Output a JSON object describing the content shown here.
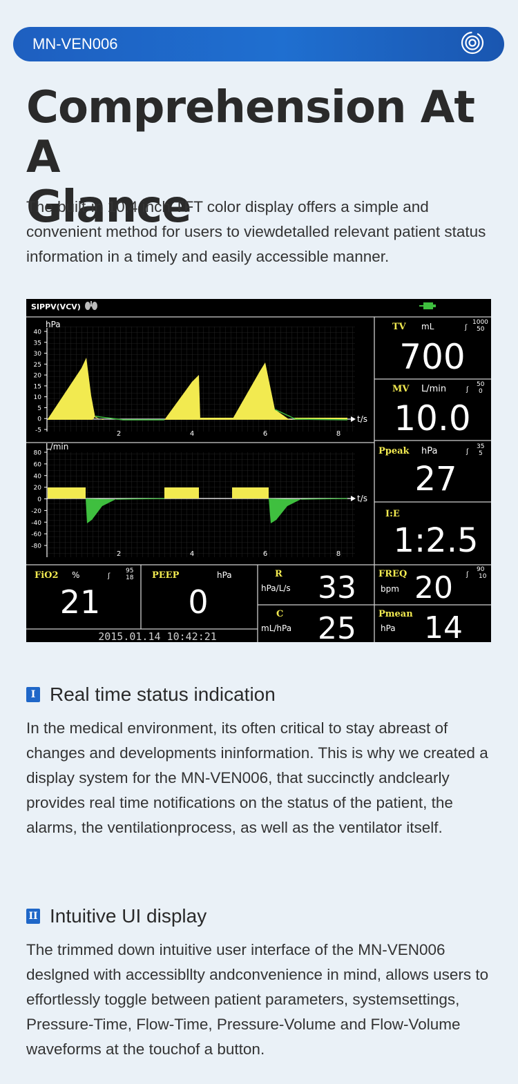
{
  "header": {
    "title": "MN-VEN006",
    "icon": "target-icon"
  },
  "hero": {
    "heading_line1": "Comprehension At A",
    "heading_line2": "Glance",
    "intro": "The built-in 10,4 inch TFT color display offers a simple and convenient method for users to viewdetalled relevant patient status information in a timely and easily accessible manner."
  },
  "monitor": {
    "mode": "SIPPV(VCV)",
    "pressure_chart": {
      "unit": "hPa",
      "yticks": [
        "40",
        "35",
        "30",
        "25",
        "20",
        "15",
        "10",
        "5",
        "0",
        "-5"
      ],
      "xticks": [
        "2",
        "4",
        "6",
        "8"
      ],
      "xlabel": "t/s"
    },
    "flow_chart": {
      "unit": "L/min",
      "yticks": [
        "80",
        "60",
        "40",
        "20",
        "0",
        "-20",
        "-40",
        "-60",
        "-80"
      ],
      "xticks": [
        "2",
        "4",
        "6",
        "8"
      ],
      "xlabel": "t/s"
    },
    "params": {
      "tv": {
        "label": "TV",
        "unit": "mL",
        "hi": "1000",
        "lo": "50",
        "value": "700"
      },
      "mv": {
        "label": "MV",
        "unit": "L/min",
        "hi": "50",
        "lo": "0",
        "value": "10.0"
      },
      "ppeak": {
        "label": "Ppeak",
        "unit": "hPa",
        "hi": "35",
        "lo": "5",
        "value": "27"
      },
      "ie": {
        "label": "I:E",
        "value": "1:2.5"
      },
      "fio2": {
        "label": "FiO2",
        "unit": "%",
        "hi": "95",
        "lo": "18",
        "value": "21"
      },
      "peep": {
        "label": "PEEP",
        "unit": "hPa",
        "value": "0"
      },
      "r": {
        "label": "R",
        "unit": "hPa/L/s",
        "value": "33"
      },
      "c": {
        "label": "C",
        "unit": "mL/hPa",
        "value": "25"
      },
      "freq": {
        "label": "FREQ",
        "unit": "bpm",
        "hi": "90",
        "lo": "10",
        "value": "20"
      },
      "pmean": {
        "label": "Pmean",
        "unit": "hPa",
        "value": "14"
      }
    },
    "datetime": "2015.01.14  10:42:21",
    "colors": {
      "pressure": "#f2ea50",
      "flow_neg": "#3fbf3f",
      "text": "#ffffff",
      "label": "#f2ea50"
    }
  },
  "section1": {
    "numeral": "I",
    "title": "Real time status indication",
    "body": "In the medical environment, its often critical to stay abreast of changes and developments ininformation. This is why we created a display system for the MN-VEN006, that succinctly andclearly provides real time notifications on the status of the patient, the alarms, the ventilationprocess, as well as the ventilator itself."
  },
  "section2": {
    "numeral": "II",
    "title": "Intuitive UI display",
    "body": "The trimmed down intuitive user interface of the MN-VEN006 deslgned with accessibllty andconvenience in mind, allows users to effortlessly toggle between patient parameters, systemsettings, Pressure-Time, Flow-Time, Pressure-Volume and Flow-Volume waveforms at the touchof a button."
  }
}
